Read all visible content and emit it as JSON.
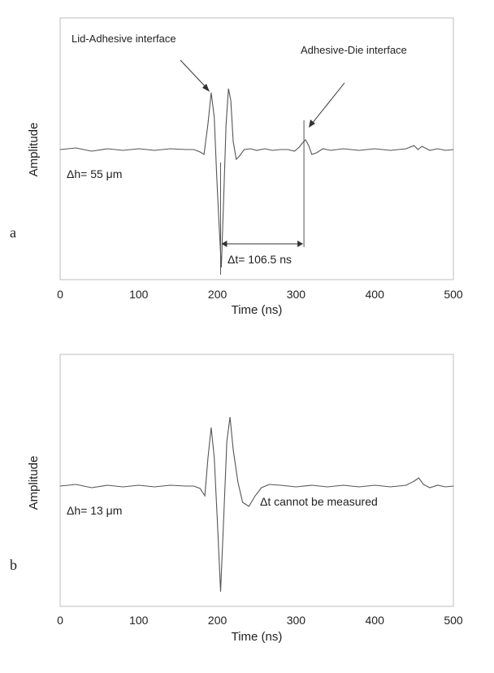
{
  "chart_data": [
    {
      "panel_label": "a",
      "type": "line",
      "xlabel": "Time (ns)",
      "ylabel": "Amplitude",
      "xlim": [
        0,
        500
      ],
      "xticks": [
        "0",
        "100",
        "200",
        "300",
        "400",
        "500"
      ],
      "grid": false,
      "legend": "none",
      "series": [
        {
          "x": [
            0,
            20,
            40,
            60,
            80,
            100,
            120,
            140,
            160,
            170,
            178,
            183,
            188,
            192,
            196,
            199,
            202,
            205,
            208,
            211,
            214,
            217,
            220,
            224,
            228,
            234,
            242,
            250,
            260,
            270,
            280,
            290,
            298,
            304,
            308,
            312,
            316,
            320,
            326,
            334,
            344,
            360,
            380,
            400,
            420,
            440,
            450,
            455,
            460,
            470,
            480,
            490,
            500
          ],
          "y": [
            0,
            0.02,
            -0.02,
            0.01,
            -0.01,
            0.01,
            -0.01,
            0.01,
            0,
            0,
            -0.03,
            -0.06,
            0.32,
            0.7,
            0.4,
            -0.3,
            -0.9,
            -1.45,
            -0.6,
            0.3,
            0.75,
            0.6,
            0.1,
            -0.12,
            -0.08,
            0,
            0.01,
            -0.01,
            0.01,
            -0.01,
            0,
            0,
            -0.02,
            0.03,
            0.08,
            0.12,
            0.05,
            -0.06,
            -0.04,
            0.01,
            -0.01,
            0.01,
            -0.01,
            0.01,
            -0.01,
            0.01,
            0.05,
            0.0,
            0.04,
            -0.01,
            0.01,
            -0.01,
            0
          ]
        }
      ],
      "annotations": [
        {
          "text": "Lid-Adhesive interface"
        },
        {
          "text": "Adhesive-Die interface"
        },
        {
          "text": "Δh= 55 μm"
        },
        {
          "text": "Δt= 106.5 ns"
        }
      ],
      "interval_ns": [
        204,
        310
      ]
    },
    {
      "panel_label": "b",
      "type": "line",
      "xlabel": "Time (ns)",
      "ylabel": "Amplitude",
      "xlim": [
        0,
        500
      ],
      "xticks": [
        "0",
        "100",
        "200",
        "300",
        "400",
        "500"
      ],
      "grid": false,
      "legend": "none",
      "series": [
        {
          "x": [
            0,
            20,
            40,
            60,
            80,
            100,
            120,
            140,
            160,
            170,
            178,
            184,
            188,
            192,
            196,
            200,
            204,
            208,
            212,
            216,
            220,
            226,
            232,
            240,
            248,
            256,
            266,
            280,
            300,
            320,
            340,
            360,
            380,
            400,
            420,
            440,
            450,
            456,
            462,
            470,
            480,
            490,
            500
          ],
          "y": [
            0,
            0.02,
            -0.02,
            0.01,
            -0.01,
            0.01,
            -0.01,
            0.01,
            0,
            0,
            -0.03,
            -0.12,
            0.35,
            0.72,
            0.35,
            -0.45,
            -1.3,
            -0.4,
            0.55,
            0.85,
            0.45,
            0.05,
            -0.2,
            -0.25,
            -0.12,
            -0.02,
            0.02,
            0.01,
            -0.01,
            0.01,
            -0.01,
            0.01,
            -0.01,
            0.01,
            -0.01,
            0.01,
            0.06,
            0.1,
            0.02,
            -0.02,
            0.01,
            -0.01,
            0
          ]
        }
      ],
      "annotations": [
        {
          "text": "Δh= 13 μm"
        },
        {
          "text": "Δt cannot be measured"
        }
      ]
    }
  ]
}
